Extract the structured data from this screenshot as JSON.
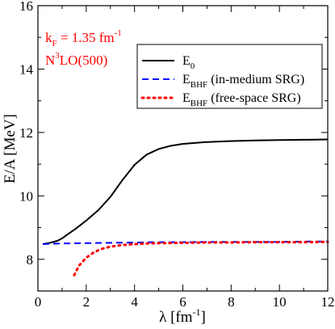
{
  "chart_data": {
    "type": "line",
    "xlabel": "λ [fm",
    "xlabel_sup": "-1",
    "xlabel_tail": "]",
    "ylabel": "E/A [MeV]",
    "xlim": [
      0,
      12
    ],
    "ylim": [
      7,
      16
    ],
    "xticks": [
      0,
      2,
      4,
      6,
      8,
      10,
      12
    ],
    "yticks": [
      8,
      10,
      12,
      14,
      16
    ],
    "grid": false,
    "legend_position": "top-right",
    "annotations": [
      {
        "id": "kf",
        "parts": [
          "k",
          "F",
          " = 1.35 fm",
          "-1"
        ],
        "color": "#ff0000"
      },
      {
        "id": "model",
        "parts": [
          "N",
          "3",
          "LO(500)"
        ],
        "color": "#ff0000"
      }
    ],
    "series": [
      {
        "name": "E",
        "name_sub": "0",
        "color": "#000000",
        "dash": "solid",
        "x": [
          0.2,
          0.5,
          0.8,
          1.0,
          1.2,
          1.5,
          1.8,
          2.0,
          2.5,
          3.0,
          3.5,
          4.0,
          4.5,
          5.0,
          5.5,
          6.0,
          7.0,
          8.0,
          9.0,
          10.0,
          11.0,
          12.0
        ],
        "y": [
          8.48,
          8.52,
          8.58,
          8.66,
          8.77,
          8.93,
          9.1,
          9.22,
          9.55,
          9.97,
          10.5,
          10.98,
          11.3,
          11.48,
          11.58,
          11.64,
          11.7,
          11.73,
          11.75,
          11.76,
          11.77,
          11.78
        ]
      },
      {
        "name": "E",
        "name_sub": "BHF",
        "name_tail": " (in-medium SRG)",
        "color": "#0000ff",
        "dash": "dashed",
        "x": [
          0.2,
          0.5,
          1.0,
          2.0,
          3.0,
          4.0,
          5.0,
          6.0,
          7.0,
          8.0,
          9.0,
          10.0,
          11.0,
          12.0
        ],
        "y": [
          8.48,
          8.49,
          8.5,
          8.51,
          8.52,
          8.53,
          8.54,
          8.54,
          8.55,
          8.55,
          8.55,
          8.55,
          8.56,
          8.56
        ]
      },
      {
        "name": "E",
        "name_sub": "BHF",
        "name_tail": " (free-space SRG)",
        "color": "#ff0000",
        "dash": "dotted",
        "x": [
          1.5,
          1.7,
          2.0,
          2.3,
          2.6,
          3.0,
          3.5,
          4.0,
          4.5,
          5.0,
          6.0,
          7.0,
          8.0,
          9.0,
          10.0,
          11.0,
          12.0
        ],
        "y": [
          7.5,
          7.8,
          8.05,
          8.21,
          8.32,
          8.4,
          8.45,
          8.48,
          8.5,
          8.51,
          8.52,
          8.53,
          8.53,
          8.54,
          8.54,
          8.54,
          8.55
        ]
      }
    ]
  }
}
